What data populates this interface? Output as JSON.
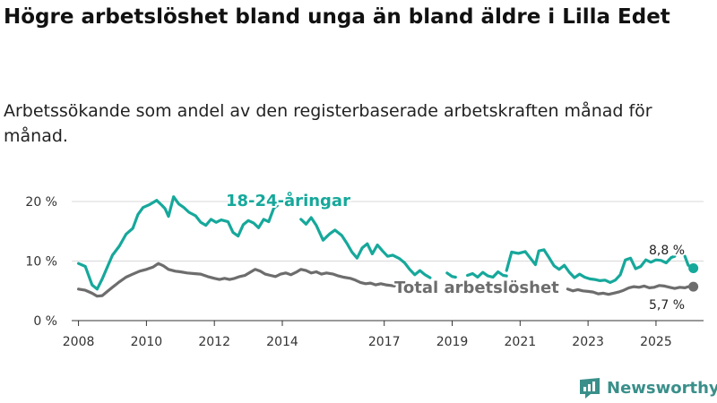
{
  "title": "Högre arbetslöshet bland unga än bland äldre i Lilla Edet",
  "subtitle": "Arbetssökande som andel av den registerbaserade arbetskraften månad för månad.",
  "brand": "Newsworthy",
  "colors": {
    "youth": "#16a89b",
    "total": "#6d6d6d",
    "grid": "#d9d9d9",
    "brand": "#3a8f8a"
  },
  "chart_data": {
    "type": "line",
    "title": "Högre arbetslöshet bland unga än bland äldre i Lilla Edet",
    "subtitle": "Arbetssökande som andel av den registerbaserade arbetskraften månad för månad.",
    "xlabel": "",
    "ylabel": "",
    "ylim": [
      0,
      20
    ],
    "xlim": [
      2007.8,
      2026.4
    ],
    "yticks": [
      0,
      10,
      20
    ],
    "ytick_labels": [
      "0 %",
      "10 %",
      "20 %"
    ],
    "xticks": [
      2008,
      2010,
      2012,
      2014,
      2017,
      2019,
      2021,
      2023,
      2025
    ],
    "xtick_labels": [
      "2008",
      "2010",
      "2012",
      "2014",
      "2017",
      "2019",
      "2021",
      "2023",
      "2025"
    ],
    "grid": true,
    "series": [
      {
        "name": "18-24-åringar",
        "label": "18-24-åringar",
        "color": "#16a89b",
        "end_label": "8,8 %",
        "segments": [
          [
            [
              2008.0,
              9.6
            ],
            [
              2008.2,
              9.1
            ],
            [
              2008.4,
              6.0
            ],
            [
              2008.55,
              5.3
            ],
            [
              2008.7,
              7.0
            ],
            [
              2008.85,
              9.0
            ],
            [
              2009.0,
              11.0
            ],
            [
              2009.2,
              12.5
            ],
            [
              2009.4,
              14.5
            ],
            [
              2009.6,
              15.5
            ],
            [
              2009.75,
              17.8
            ],
            [
              2009.9,
              19.0
            ],
            [
              2010.1,
              19.5
            ],
            [
              2010.3,
              20.2
            ],
            [
              2010.45,
              19.4
            ],
            [
              2010.55,
              18.8
            ],
            [
              2010.65,
              17.5
            ],
            [
              2010.8,
              20.8
            ],
            [
              2010.95,
              19.6
            ],
            [
              2011.1,
              19.0
            ],
            [
              2011.25,
              18.2
            ],
            [
              2011.45,
              17.6
            ],
            [
              2011.6,
              16.5
            ],
            [
              2011.75,
              16.0
            ],
            [
              2011.9,
              17.0
            ],
            [
              2012.05,
              16.5
            ],
            [
              2012.2,
              16.9
            ],
            [
              2012.4,
              16.6
            ],
            [
              2012.55,
              14.8
            ],
            [
              2012.7,
              14.2
            ],
            [
              2012.85,
              16.1
            ],
            [
              2013.0,
              16.8
            ],
            [
              2013.15,
              16.4
            ],
            [
              2013.3,
              15.6
            ],
            [
              2013.45,
              17.0
            ],
            [
              2013.6,
              16.6
            ],
            [
              2013.75,
              18.9
            ],
            [
              2013.85,
              19.3
            ]
          ],
          [
            [
              2014.55,
              17.0
            ],
            [
              2014.7,
              16.2
            ],
            [
              2014.85,
              17.3
            ],
            [
              2015.0,
              16.0
            ],
            [
              2015.2,
              13.5
            ],
            [
              2015.4,
              14.6
            ],
            [
              2015.55,
              15.2
            ],
            [
              2015.75,
              14.3
            ],
            [
              2015.9,
              13.0
            ],
            [
              2016.05,
              11.5
            ],
            [
              2016.2,
              10.5
            ],
            [
              2016.35,
              12.2
            ],
            [
              2016.5,
              12.9
            ],
            [
              2016.65,
              11.2
            ],
            [
              2016.8,
              12.7
            ],
            [
              2016.95,
              11.7
            ],
            [
              2017.1,
              10.8
            ],
            [
              2017.25,
              11.0
            ],
            [
              2017.45,
              10.4
            ],
            [
              2017.6,
              9.7
            ],
            [
              2017.75,
              8.6
            ],
            [
              2017.9,
              7.7
            ],
            [
              2018.05,
              8.4
            ],
            [
              2018.2,
              7.7
            ],
            [
              2018.35,
              7.2
            ]
          ],
          [
            [
              2018.85,
              8.0
            ],
            [
              2019.0,
              7.4
            ],
            [
              2019.1,
              7.3
            ]
          ],
          [
            [
              2019.45,
              7.6
            ],
            [
              2019.6,
              7.9
            ],
            [
              2019.75,
              7.3
            ],
            [
              2019.9,
              8.1
            ],
            [
              2020.05,
              7.5
            ],
            [
              2020.2,
              7.3
            ],
            [
              2020.35,
              8.2
            ],
            [
              2020.5,
              7.6
            ],
            [
              2020.6,
              7.5
            ]
          ],
          [
            [
              2020.6,
              8.4
            ],
            [
              2020.75,
              11.5
            ],
            [
              2020.95,
              11.3
            ],
            [
              2021.15,
              11.6
            ],
            [
              2021.3,
              10.5
            ],
            [
              2021.45,
              9.4
            ],
            [
              2021.55,
              11.7
            ],
            [
              2021.7,
              11.9
            ],
            [
              2021.85,
              10.6
            ],
            [
              2022.0,
              9.2
            ],
            [
              2022.15,
              8.6
            ],
            [
              2022.3,
              9.3
            ],
            [
              2022.45,
              8.1
            ],
            [
              2022.6,
              7.2
            ],
            [
              2022.75,
              7.8
            ],
            [
              2022.9,
              7.3
            ],
            [
              2023.05,
              7.0
            ],
            [
              2023.2,
              6.9
            ],
            [
              2023.35,
              6.7
            ],
            [
              2023.5,
              6.8
            ],
            [
              2023.65,
              6.4
            ],
            [
              2023.8,
              6.8
            ],
            [
              2023.95,
              7.7
            ],
            [
              2024.1,
              10.2
            ],
            [
              2024.25,
              10.5
            ],
            [
              2024.4,
              8.7
            ],
            [
              2024.55,
              9.1
            ],
            [
              2024.7,
              10.2
            ],
            [
              2024.85,
              9.8
            ],
            [
              2025.0,
              10.2
            ],
            [
              2025.15,
              10.1
            ],
            [
              2025.3,
              9.7
            ],
            [
              2025.45,
              10.6
            ],
            [
              2025.55,
              10.8
            ]
          ],
          [
            [
              2025.85,
              10.8
            ],
            [
              2025.95,
              9.3
            ],
            [
              2026.1,
              8.8
            ]
          ]
        ]
      },
      {
        "name": "Total arbetslöshet",
        "label": "Total arbetslöshet",
        "color": "#6d6d6d",
        "end_label": "5,7 %",
        "segments": [
          [
            [
              2008.0,
              5.3
            ],
            [
              2008.2,
              5.1
            ],
            [
              2008.4,
              4.6
            ],
            [
              2008.55,
              4.1
            ],
            [
              2008.7,
              4.2
            ],
            [
              2008.85,
              4.9
            ],
            [
              2009.0,
              5.6
            ],
            [
              2009.2,
              6.5
            ],
            [
              2009.4,
              7.3
            ],
            [
              2009.6,
              7.8
            ],
            [
              2009.8,
              8.3
            ],
            [
              2010.0,
              8.6
            ],
            [
              2010.2,
              9.0
            ],
            [
              2010.35,
              9.6
            ],
            [
              2010.5,
              9.2
            ],
            [
              2010.65,
              8.6
            ],
            [
              2010.85,
              8.3
            ],
            [
              2011.0,
              8.2
            ],
            [
              2011.2,
              8.0
            ],
            [
              2011.4,
              7.9
            ],
            [
              2011.6,
              7.8
            ],
            [
              2011.8,
              7.4
            ],
            [
              2012.0,
              7.1
            ],
            [
              2012.15,
              6.9
            ],
            [
              2012.3,
              7.1
            ],
            [
              2012.45,
              6.9
            ],
            [
              2012.6,
              7.1
            ],
            [
              2012.75,
              7.4
            ],
            [
              2012.9,
              7.6
            ],
            [
              2013.05,
              8.1
            ],
            [
              2013.2,
              8.6
            ],
            [
              2013.35,
              8.3
            ],
            [
              2013.5,
              7.8
            ],
            [
              2013.65,
              7.6
            ],
            [
              2013.8,
              7.4
            ],
            [
              2013.95,
              7.8
            ],
            [
              2014.1,
              8.0
            ],
            [
              2014.25,
              7.7
            ],
            [
              2014.4,
              8.1
            ],
            [
              2014.55,
              8.6
            ],
            [
              2014.7,
              8.4
            ],
            [
              2014.85,
              8.0
            ],
            [
              2015.0,
              8.2
            ],
            [
              2015.15,
              7.8
            ],
            [
              2015.3,
              8.0
            ],
            [
              2015.5,
              7.8
            ],
            [
              2015.65,
              7.5
            ],
            [
              2015.8,
              7.3
            ],
            [
              2016.0,
              7.1
            ],
            [
              2016.15,
              6.8
            ],
            [
              2016.3,
              6.4
            ],
            [
              2016.45,
              6.2
            ],
            [
              2016.6,
              6.3
            ],
            [
              2016.75,
              6.0
            ],
            [
              2016.9,
              6.2
            ],
            [
              2017.05,
              6.0
            ],
            [
              2017.2,
              5.9
            ],
            [
              2017.3,
              5.8
            ]
          ],
          [
            [
              2020.25,
              5.9
            ],
            [
              2020.45,
              5.7
            ]
          ],
          [
            [
              2022.4,
              5.3
            ],
            [
              2022.55,
              5.0
            ],
            [
              2022.7,
              5.2
            ],
            [
              2022.85,
              5.0
            ],
            [
              2023.0,
              4.9
            ],
            [
              2023.15,
              4.8
            ],
            [
              2023.3,
              4.5
            ],
            [
              2023.45,
              4.6
            ],
            [
              2023.6,
              4.4
            ],
            [
              2023.75,
              4.6
            ],
            [
              2023.9,
              4.8
            ],
            [
              2024.05,
              5.1
            ],
            [
              2024.2,
              5.5
            ],
            [
              2024.35,
              5.7
            ],
            [
              2024.5,
              5.6
            ],
            [
              2024.65,
              5.8
            ],
            [
              2024.8,
              5.5
            ],
            [
              2024.95,
              5.6
            ],
            [
              2025.1,
              5.9
            ],
            [
              2025.25,
              5.8
            ],
            [
              2025.4,
              5.6
            ],
            [
              2025.55,
              5.4
            ],
            [
              2025.7,
              5.6
            ],
            [
              2025.85,
              5.5
            ],
            [
              2025.95,
              5.7
            ],
            [
              2026.1,
              5.7
            ]
          ]
        ]
      }
    ]
  }
}
